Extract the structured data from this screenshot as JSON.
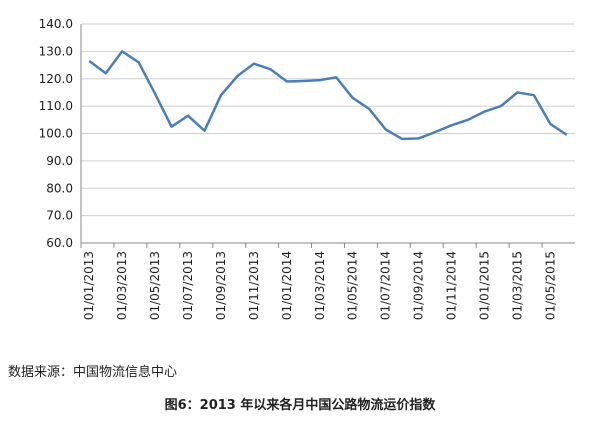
{
  "chart_data": {
    "type": "line",
    "categories": [
      "01/01/2013",
      null,
      "01/03/2013",
      null,
      "01/05/2013",
      null,
      "01/07/2013",
      null,
      "01/09/2013",
      null,
      "01/11/2013",
      null,
      "01/01/2014",
      null,
      "01/03/2014",
      null,
      "01/05/2014",
      null,
      "01/07/2014",
      null,
      "01/09/2014",
      null,
      "01/11/2014",
      null,
      "01/01/2015",
      null,
      "01/03/2015",
      null,
      "01/05/2015",
      null
    ],
    "values": [
      126.5,
      122,
      130,
      126,
      114.5,
      102.5,
      106.5,
      101,
      114,
      121,
      125.5,
      123.5,
      119,
      119.2,
      119.5,
      120.5,
      113,
      109,
      101.5,
      98,
      98.2,
      100.5,
      103,
      105,
      108,
      110,
      115,
      114,
      103.5,
      99.5
    ],
    "color": "#4a7ebb",
    "ylim": [
      60,
      140
    ],
    "yticks": [
      {
        "value": 60,
        "label": "60.0"
      },
      {
        "value": 70,
        "label": "70.0"
      },
      {
        "value": 80,
        "label": "80.0"
      },
      {
        "value": 90,
        "label": "90.0"
      },
      {
        "value": 100,
        "label": "100.0"
      },
      {
        "value": 110,
        "label": "110.0"
      },
      {
        "value": 120,
        "label": "120.0"
      },
      {
        "value": 130,
        "label": "130.0"
      },
      {
        "value": 140,
        "label": "140.0"
      }
    ],
    "grid": true,
    "source": "数据来源：中国物流信息中心",
    "caption": "图6：2013 年以来各月中国公路物流运价指数"
  }
}
